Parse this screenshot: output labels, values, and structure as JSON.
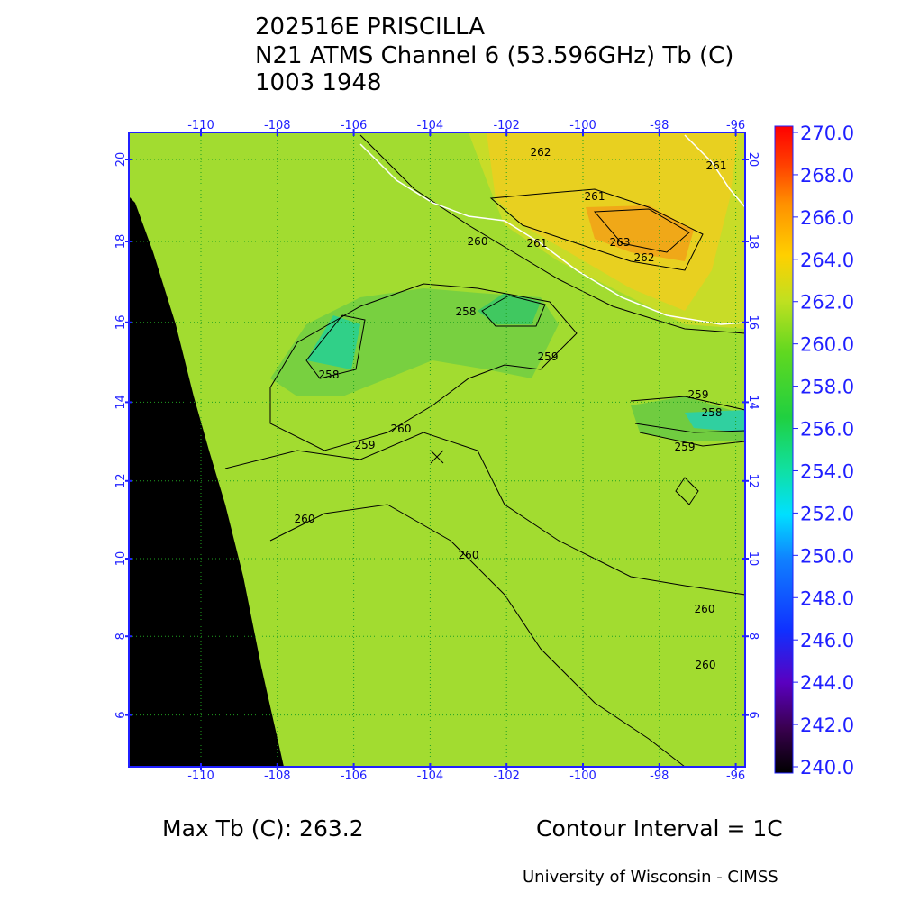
{
  "header": {
    "lines": [
      "202516E PRISCILLA",
      "N21 ATMS Channel 6 (53.596GHz) Tb (C)",
      "1003 1948"
    ]
  },
  "map": {
    "lon_ticks": [
      -110,
      -108,
      -106,
      -104,
      -102,
      -100,
      -98,
      -96
    ],
    "lat_ticks": [
      20,
      18,
      16,
      14,
      12,
      10,
      8,
      6
    ],
    "contour_labels": [
      "262",
      "261",
      "261",
      "263",
      "262",
      "260",
      "261",
      "258",
      "259",
      "258",
      "259",
      "260",
      "259",
      "260",
      "260",
      "260",
      "260",
      "258",
      "259"
    ]
  },
  "colorbar": {
    "range": [
      240,
      270
    ],
    "ticks": [
      {
        "value": 270,
        "label": "270.0"
      },
      {
        "value": 268,
        "label": "268.0"
      },
      {
        "value": 266,
        "label": "266.0"
      },
      {
        "value": 264,
        "label": "264.0"
      },
      {
        "value": 262,
        "label": "262.0"
      },
      {
        "value": 260,
        "label": "260.0"
      },
      {
        "value": 258,
        "label": "258.0"
      },
      {
        "value": 256,
        "label": "256.0"
      },
      {
        "value": 254,
        "label": "254.0"
      },
      {
        "value": 252,
        "label": "252.0"
      },
      {
        "value": 250,
        "label": "250.0"
      },
      {
        "value": 248,
        "label": "248.0"
      },
      {
        "value": 246,
        "label": "246.0"
      },
      {
        "value": 244,
        "label": "244.0"
      },
      {
        "value": 242,
        "label": "242.0"
      },
      {
        "value": 240,
        "label": "240.0"
      }
    ]
  },
  "footer": {
    "max_tb": "Max Tb (C): 263.2",
    "contour_interval": "Contour Interval = 1C",
    "credit": "University of Wisconsin - CIMSS"
  }
}
